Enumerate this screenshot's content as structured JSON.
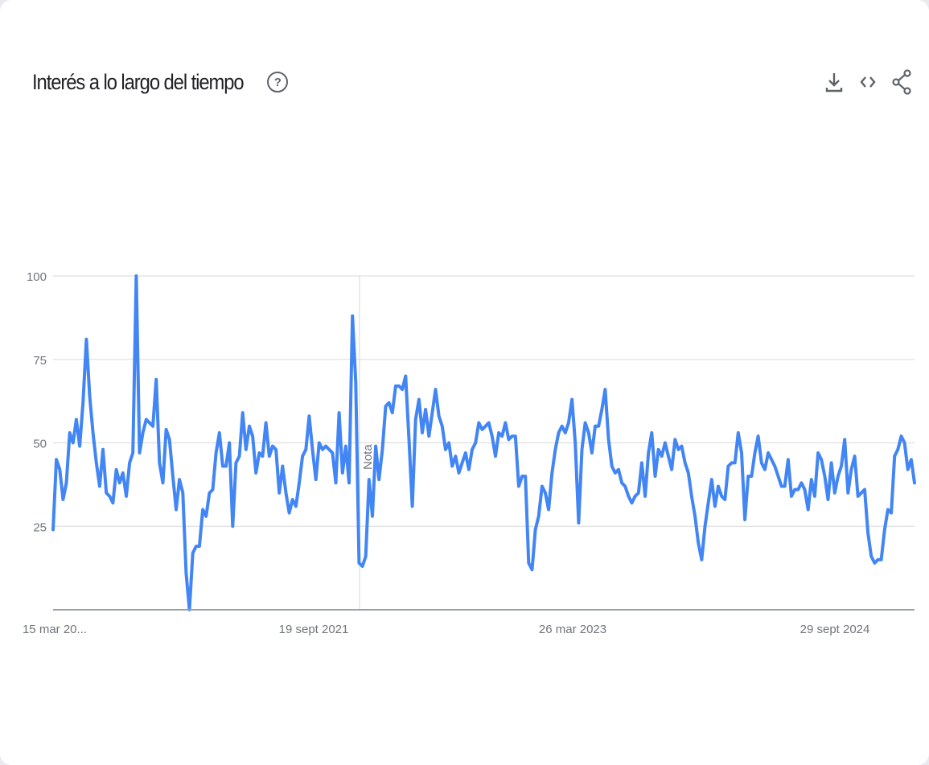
{
  "header": {
    "title": "Interés a lo largo del tiempo",
    "help_icon": "question-circle-icon",
    "actions": [
      "download-icon",
      "embed-code-icon",
      "share-icon"
    ]
  },
  "colors": {
    "line": "#4285f4",
    "grid": "#e0e0e0",
    "axis": "#9aa0a6",
    "text": "#70757a"
  },
  "chart_data": {
    "type": "line",
    "title": "Interés a lo largo del tiempo",
    "xlabel": "",
    "ylabel": "",
    "ylim": [
      0,
      100
    ],
    "yticks": [
      25,
      50,
      75,
      100
    ],
    "grid": true,
    "xtick_labels": [
      "15 mar 20...",
      "19 sept 2021",
      "26 mar 2023",
      "29 sept 2024"
    ],
    "annotation": "Nota",
    "series": [
      {
        "values": [
          24,
          45,
          42,
          33,
          38,
          53,
          50,
          57,
          49,
          62,
          81,
          64,
          53,
          44,
          37,
          48,
          35,
          34,
          32,
          42,
          38,
          41,
          34,
          44,
          47,
          100,
          47,
          53,
          57,
          56,
          55,
          69,
          44,
          38,
          54,
          51,
          40,
          30,
          39,
          35,
          11,
          0,
          17,
          19,
          19,
          30,
          28,
          35,
          36,
          47,
          53,
          43,
          43,
          50,
          25,
          44,
          46,
          59,
          48,
          55,
          52,
          41,
          47,
          46,
          56,
          46,
          49,
          48,
          35,
          43,
          35,
          29,
          33,
          31,
          38,
          46,
          48,
          58,
          48,
          39,
          50,
          48,
          49,
          48,
          47,
          38,
          59,
          41,
          49,
          38,
          88,
          68,
          14,
          13,
          16,
          39,
          28,
          49,
          39,
          48,
          61,
          62,
          59,
          67,
          67,
          66,
          70,
          51,
          31,
          57,
          63,
          53,
          60,
          52,
          59,
          66,
          58,
          55,
          48,
          50,
          43,
          46,
          41,
          44,
          47,
          42,
          48,
          50,
          56,
          54,
          55,
          56,
          52,
          46,
          53,
          52,
          56,
          51,
          52,
          52,
          37,
          40,
          40,
          14,
          12,
          24,
          28,
          37,
          35,
          30,
          41,
          48,
          53,
          55,
          53,
          56,
          63,
          50,
          26,
          48,
          56,
          53,
          47,
          55,
          55,
          60,
          66,
          51,
          43,
          41,
          42,
          38,
          37,
          34,
          32,
          34,
          35,
          44,
          34,
          47,
          53,
          40,
          48,
          46,
          50,
          46,
          42,
          51,
          48,
          49,
          44,
          41,
          34,
          28,
          20,
          15,
          25,
          32,
          39,
          31,
          37,
          34,
          33,
          43,
          44,
          44,
          53,
          47,
          27,
          40,
          40,
          47,
          52,
          44,
          42,
          47,
          45,
          43,
          40,
          37,
          37,
          45,
          34,
          36,
          36,
          38,
          36,
          30,
          39,
          34,
          47,
          45,
          40,
          33,
          44,
          35,
          40,
          43,
          51,
          35,
          42,
          46,
          34,
          35,
          36,
          23,
          16,
          14,
          15,
          15,
          24,
          30,
          29,
          46,
          48,
          52,
          50,
          42,
          45,
          38
        ]
      }
    ]
  }
}
